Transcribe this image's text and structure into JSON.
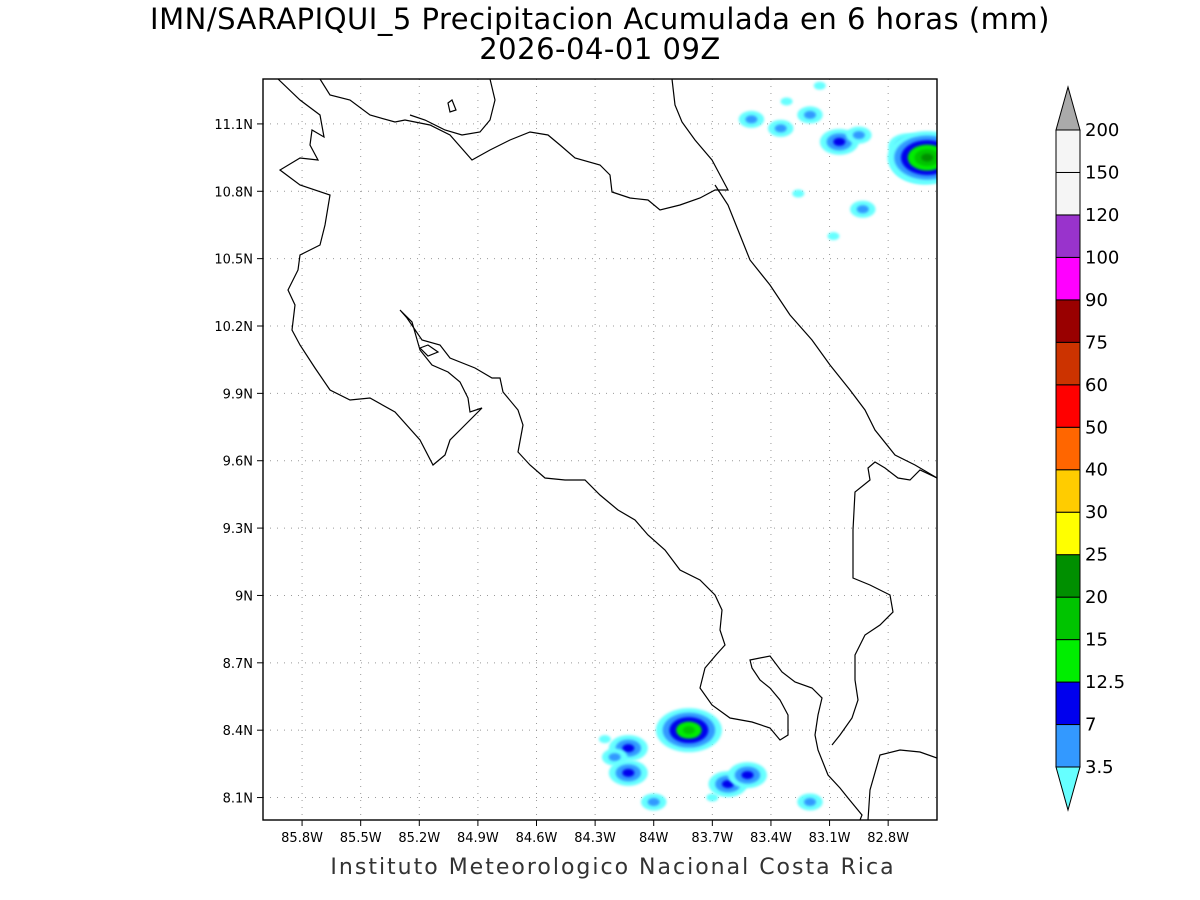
{
  "title": {
    "line1": "IMN/SARAPIQUI_5 Precipitacion Acumulada en 6 horas (mm)",
    "line2": "2026-04-01 09Z"
  },
  "footer": "Instituto Meteorologico Nacional Costa Rica",
  "map": {
    "lon_range": [
      -86.0,
      -82.55
    ],
    "lat_range": [
      8.0,
      11.3
    ],
    "lon_ticks": [
      -85.8,
      -85.5,
      -85.2,
      -84.9,
      -84.6,
      -84.3,
      -84.0,
      -83.7,
      -83.4,
      -83.1,
      -82.8
    ],
    "lon_tick_labels": [
      "85.8W",
      "85.5W",
      "85.2W",
      "84.9W",
      "84.6W",
      "84.3W",
      "84W",
      "83.7W",
      "83.4W",
      "83.1W",
      "82.8W"
    ],
    "lat_ticks": [
      8.1,
      8.4,
      8.7,
      9.0,
      9.3,
      9.6,
      9.9,
      10.2,
      10.5,
      10.8,
      11.1
    ],
    "lat_tick_labels": [
      "8.1N",
      "8.4N",
      "8.7N",
      "9N",
      "9.3N",
      "9.6N",
      "9.9N",
      "10.2N",
      "10.5N",
      "10.8N",
      "11.1N"
    ],
    "grid": true
  },
  "legend": {
    "levels": [
      "3.5",
      "7",
      "12.5",
      "15",
      "20",
      "25",
      "30",
      "40",
      "50",
      "60",
      "75",
      "90",
      "100",
      "120",
      "150",
      "200"
    ],
    "colors": [
      "#66ffff",
      "#3399ff",
      "#0000ee",
      "#00ee00",
      "#00c400",
      "#008f00",
      "#ffff00",
      "#ffcc00",
      "#ff6600",
      "#ff0000",
      "#cc3300",
      "#990000",
      "#ff00ff",
      "#9933cc",
      "#f5f5f5",
      "#aaaaaa"
    ]
  },
  "precip_cells": [
    {
      "lon": -83.2,
      "lat": 11.14,
      "value": 7
    },
    {
      "lon": -83.32,
      "lat": 11.2,
      "value": 3.5
    },
    {
      "lon": -83.5,
      "lat": 11.12,
      "value": 7
    },
    {
      "lon": -83.35,
      "lat": 11.08,
      "value": 7
    },
    {
      "lon": -83.05,
      "lat": 11.02,
      "value": 12.5
    },
    {
      "lon": -82.95,
      "lat": 11.05,
      "value": 7
    },
    {
      "lon": -82.7,
      "lat": 11.0,
      "value": 12.5
    },
    {
      "lon": -82.62,
      "lat": 10.93,
      "value": 20
    },
    {
      "lon": -82.6,
      "lat": 10.95,
      "value": 25
    },
    {
      "lon": -83.15,
      "lat": 11.27,
      "value": 3.5
    },
    {
      "lon": -83.26,
      "lat": 10.79,
      "value": 3.5
    },
    {
      "lon": -82.93,
      "lat": 10.72,
      "value": 7
    },
    {
      "lon": -83.08,
      "lat": 10.6,
      "value": 3.5
    },
    {
      "lon": -84.13,
      "lat": 8.32,
      "value": 12.5
    },
    {
      "lon": -84.2,
      "lat": 8.28,
      "value": 7
    },
    {
      "lon": -84.13,
      "lat": 8.21,
      "value": 12.5
    },
    {
      "lon": -83.82,
      "lat": 8.4,
      "value": 20
    },
    {
      "lon": -83.62,
      "lat": 8.16,
      "value": 12.5
    },
    {
      "lon": -83.52,
      "lat": 8.2,
      "value": 12.5
    },
    {
      "lon": -84.0,
      "lat": 8.08,
      "value": 7
    },
    {
      "lon": -83.2,
      "lat": 8.08,
      "value": 7
    },
    {
      "lon": -84.25,
      "lat": 8.36,
      "value": 3.5
    },
    {
      "lon": -83.7,
      "lat": 8.1,
      "value": 3.5
    }
  ]
}
